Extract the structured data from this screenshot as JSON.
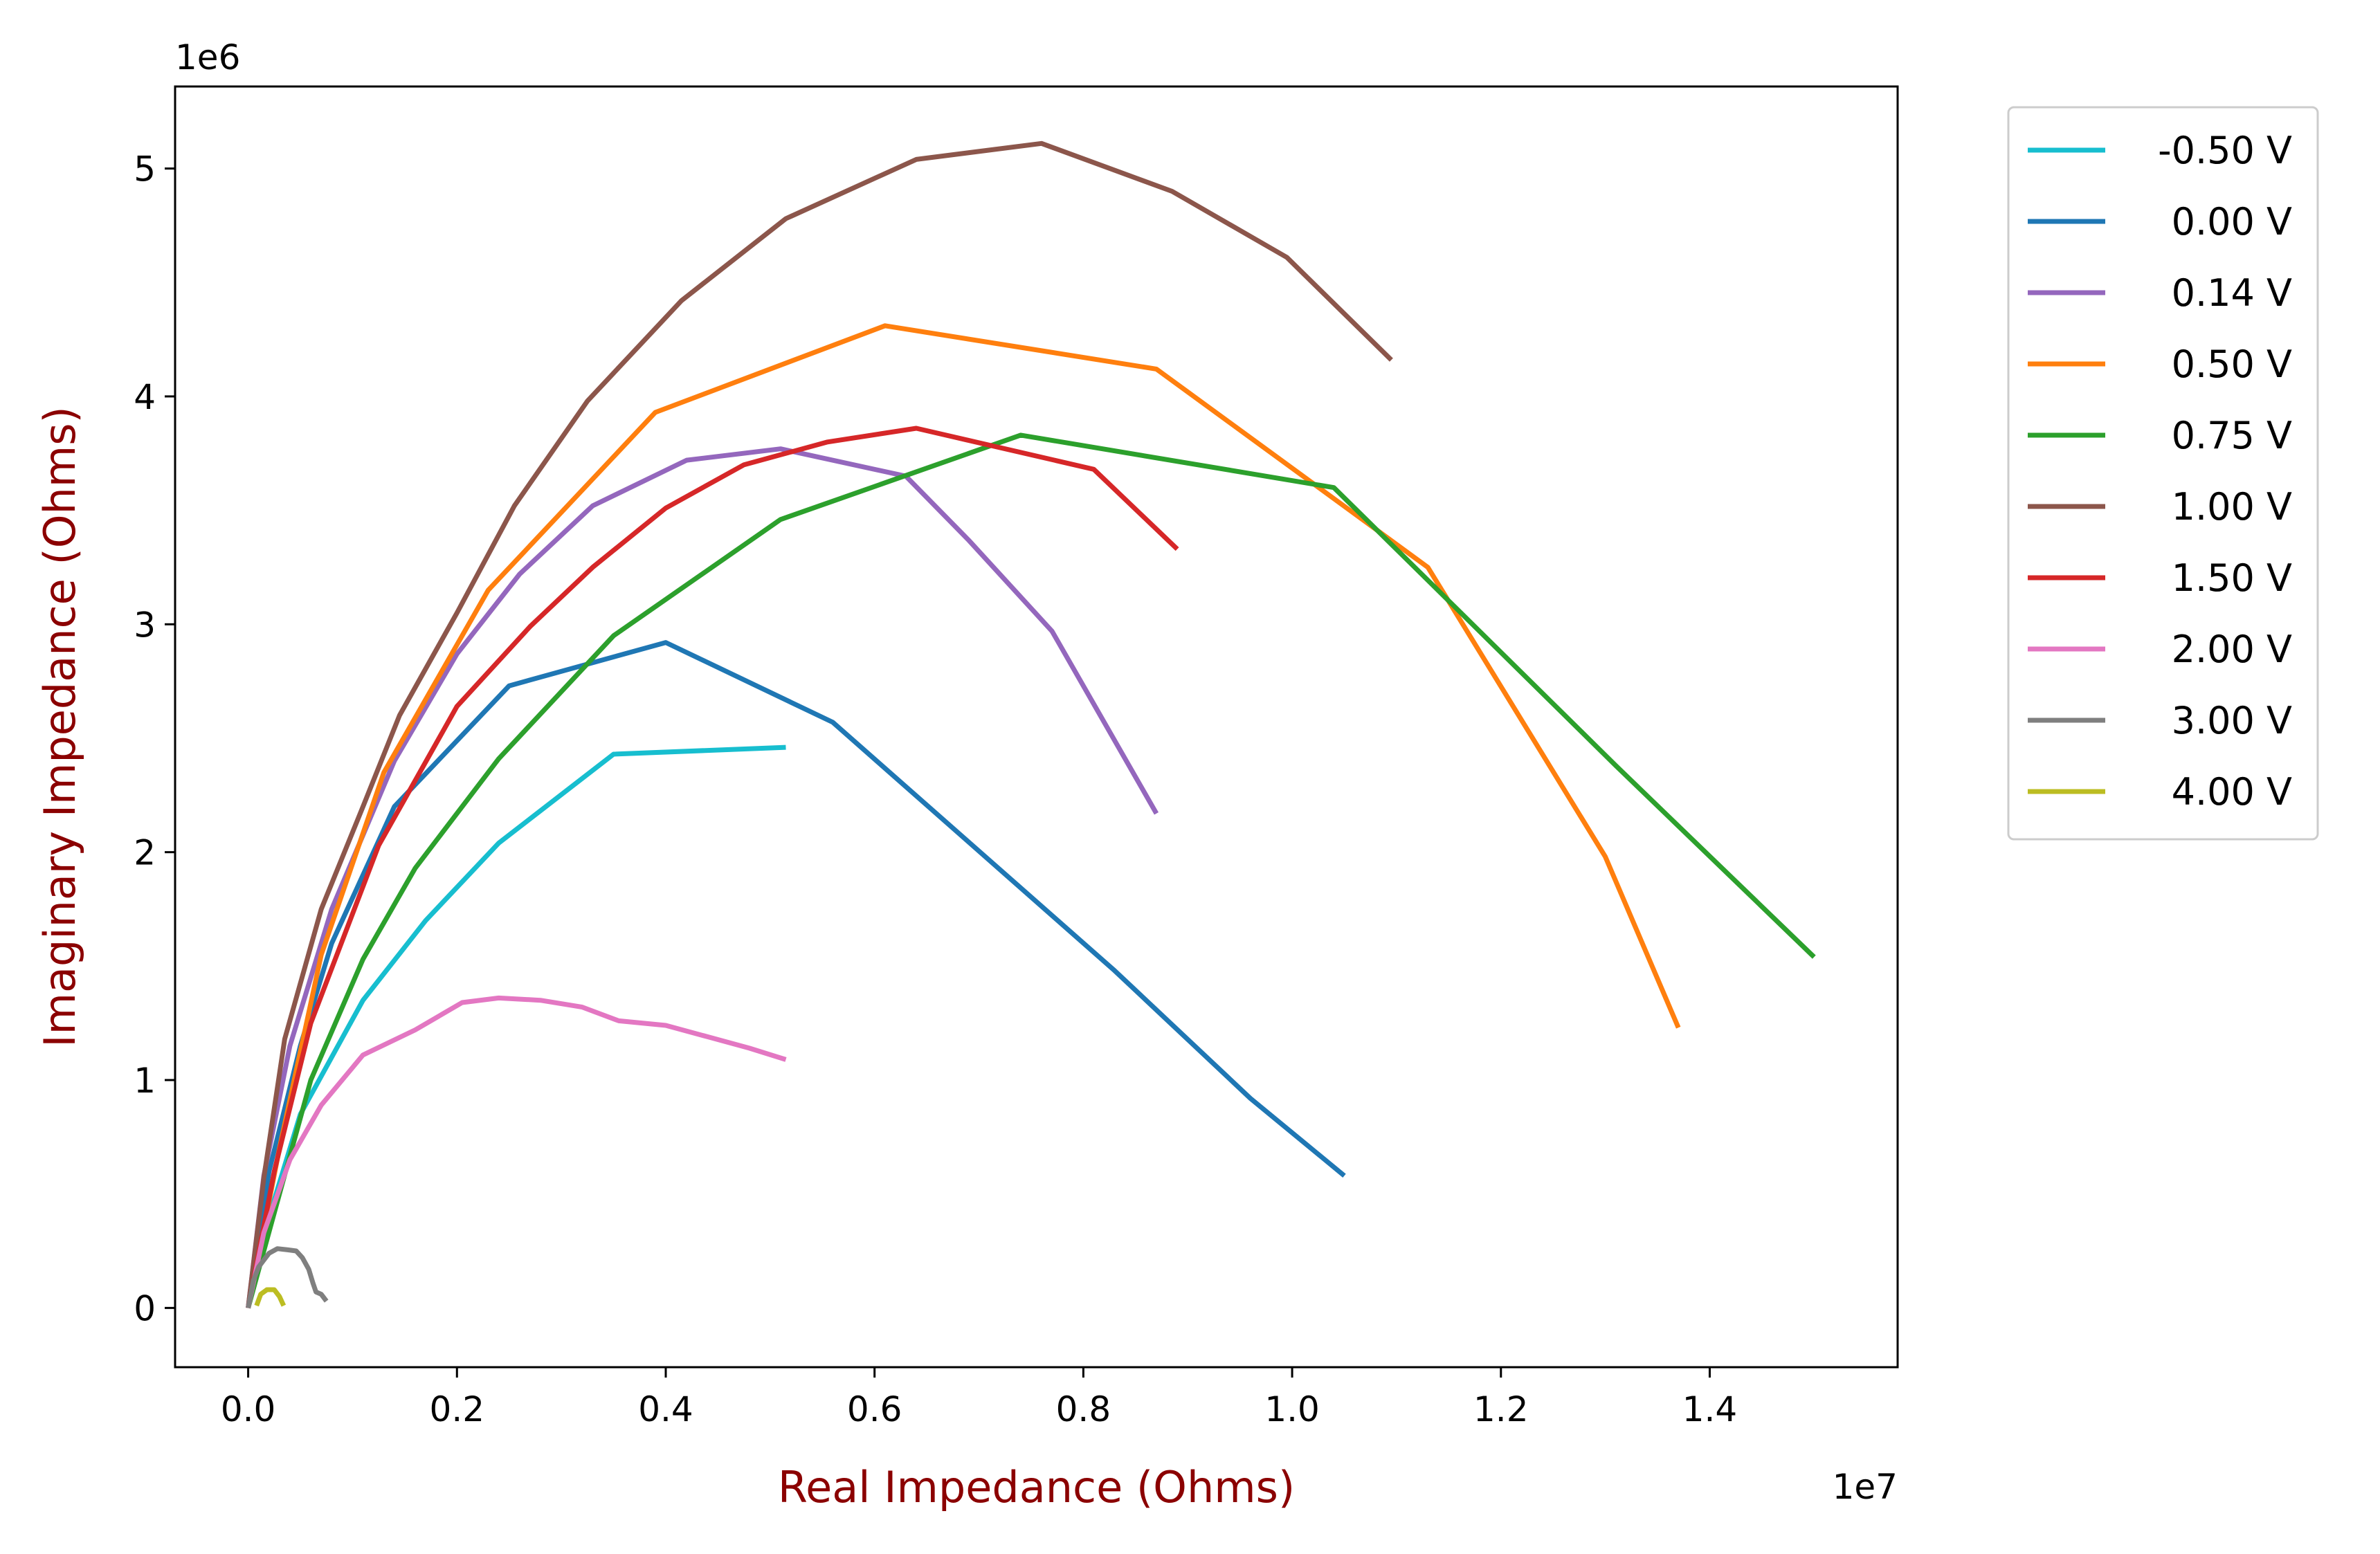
{
  "chart_data": {
    "type": "line",
    "title": "",
    "xlabel": "Real Impedance (Ohms)",
    "ylabel": "Imaginary Impedance (Ohms)",
    "x_offset_label": "1e7",
    "y_offset_label": "1e6",
    "x_scale": 10000000,
    "y_scale": 1000000,
    "xlim": [
      -700000,
      15800000
    ],
    "ylim": [
      -260000,
      5360000
    ],
    "xticks": [
      0,
      2000000,
      4000000,
      6000000,
      8000000,
      10000000,
      12000000,
      14000000
    ],
    "xtick_labels": [
      "0.0",
      "0.2",
      "0.4",
      "0.6",
      "0.8",
      "1.0",
      "1.2",
      "1.4"
    ],
    "yticks": [
      0,
      1000000,
      2000000,
      3000000,
      4000000,
      5000000
    ],
    "ytick_labels": [
      "0",
      "1",
      "2",
      "3",
      "4",
      "5"
    ],
    "grid": false,
    "legend_position": "outside-right-top",
    "series": [
      {
        "name": "-0.50 V",
        "color": "#17becf",
        "x": [
          0,
          200000,
          500000,
          1100000,
          1700000,
          2400000,
          3500000,
          5150000
        ],
        "y": [
          0,
          400000,
          850000,
          1350000,
          1700000,
          2040000,
          2430000,
          2460000
        ]
      },
      {
        "name": " 0.00 V",
        "color": "#1f77b4",
        "x": [
          0,
          200000,
          500000,
          800000,
          1400000,
          2500000,
          4000000,
          5600000,
          8300000,
          9600000,
          10500000
        ],
        "y": [
          0,
          600000,
          1150000,
          1600000,
          2200000,
          2730000,
          2920000,
          2570000,
          1480000,
          920000,
          580000
        ]
      },
      {
        "name": " 0.14 V",
        "color": "#9467bd",
        "x": [
          0,
          150000,
          400000,
          800000,
          1400000,
          2000000,
          2600000,
          3300000,
          4200000,
          5100000,
          6300000,
          6900000,
          7700000,
          8700000
        ],
        "y": [
          0,
          580000,
          1150000,
          1750000,
          2400000,
          2870000,
          3220000,
          3520000,
          3720000,
          3770000,
          3650000,
          3370000,
          2970000,
          2170000
        ]
      },
      {
        "name": " 0.50 V",
        "color": "#ff7f0e",
        "x": [
          0,
          300000,
          700000,
          1300000,
          2300000,
          3900000,
          6100000,
          8700000,
          11300000,
          13000000,
          13700000
        ],
        "y": [
          0,
          700000,
          1550000,
          2350000,
          3150000,
          3930000,
          4310000,
          4120000,
          3250000,
          1980000,
          1230000
        ]
      },
      {
        "name": " 0.75 V",
        "color": "#2ca02c",
        "x": [
          0,
          300000,
          600000,
          1100000,
          1600000,
          2400000,
          3500000,
          5100000,
          7400000,
          10400000,
          13100000,
          15000000
        ],
        "y": [
          0,
          500000,
          1000000,
          1530000,
          1930000,
          2410000,
          2950000,
          3460000,
          3830000,
          3600000,
          2380000,
          1540000
        ]
      },
      {
        "name": " 1.00 V",
        "color": "#8c564b",
        "x": [
          0,
          150000,
          350000,
          700000,
          1100000,
          1450000,
          2000000,
          2550000,
          3250000,
          4150000,
          5150000,
          6400000,
          7600000,
          8850000,
          9950000,
          10950000
        ],
        "y": [
          0,
          570000,
          1180000,
          1750000,
          2200000,
          2600000,
          3050000,
          3520000,
          3980000,
          4420000,
          4780000,
          5040000,
          5110000,
          4900000,
          4610000,
          4160000
        ]
      },
      {
        "name": " 1.50 V",
        "color": "#d62728",
        "x": [
          0,
          250000,
          600000,
          1250000,
          2000000,
          2700000,
          3300000,
          4000000,
          4750000,
          5550000,
          6400000,
          8100000,
          8900000
        ],
        "y": [
          0,
          600000,
          1250000,
          2030000,
          2640000,
          2990000,
          3250000,
          3510000,
          3700000,
          3800000,
          3860000,
          3680000,
          3330000
        ]
      },
      {
        "name": " 2.00 V",
        "color": "#e377c2",
        "x": [
          0,
          150000,
          400000,
          700000,
          1100000,
          1600000,
          2050000,
          2400000,
          2800000,
          3200000,
          3550000,
          4000000,
          4400000,
          4800000,
          5150000
        ],
        "y": [
          0,
          330000,
          650000,
          890000,
          1110000,
          1220000,
          1340000,
          1360000,
          1350000,
          1320000,
          1260000,
          1240000,
          1190000,
          1140000,
          1090000
        ]
      },
      {
        "name": " 3.00 V",
        "color": "#7f7f7f",
        "x": [
          0,
          50000,
          100000,
          200000,
          280000,
          380000,
          460000,
          520000,
          580000,
          620000,
          650000,
          700000,
          750000
        ],
        "y": [
          0,
          120000,
          180000,
          240000,
          260000,
          255000,
          250000,
          220000,
          170000,
          110000,
          70000,
          60000,
          30000
        ]
      },
      {
        "name": " 4.00 V",
        "color": "#bcbd22",
        "x": [
          80000,
          120000,
          180000,
          250000,
          300000,
          340000
        ],
        "y": [
          10000,
          60000,
          80000,
          80000,
          50000,
          10000
        ]
      }
    ]
  }
}
